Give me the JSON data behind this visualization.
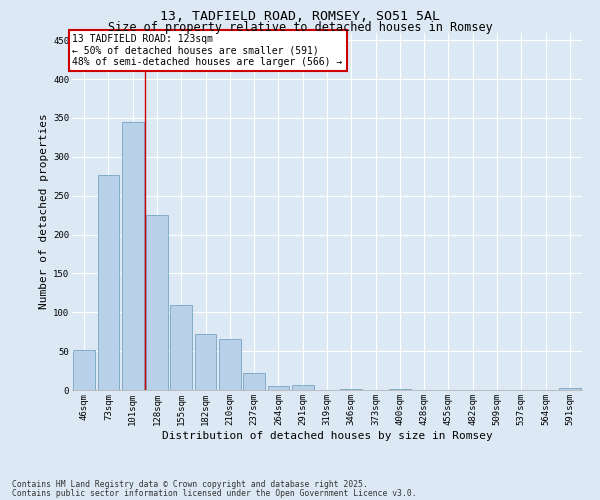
{
  "title": "13, TADFIELD ROAD, ROMSEY, SO51 5AL",
  "subtitle": "Size of property relative to detached houses in Romsey",
  "xlabel": "Distribution of detached houses by size in Romsey",
  "ylabel": "Number of detached properties",
  "categories": [
    "46sqm",
    "73sqm",
    "101sqm",
    "128sqm",
    "155sqm",
    "182sqm",
    "210sqm",
    "237sqm",
    "264sqm",
    "291sqm",
    "319sqm",
    "346sqm",
    "373sqm",
    "400sqm",
    "428sqm",
    "455sqm",
    "482sqm",
    "509sqm",
    "537sqm",
    "564sqm",
    "591sqm"
  ],
  "values": [
    51,
    277,
    345,
    225,
    110,
    72,
    65,
    22,
    5,
    6,
    0,
    1,
    0,
    1,
    0,
    0,
    0,
    0,
    0,
    0,
    2
  ],
  "bar_color": "#b8d0e8",
  "bar_edge_color": "#6699bb",
  "background_color": "#dce9f5",
  "grid_color": "#ffffff",
  "vline_x": 2.5,
  "vline_color": "#cc0000",
  "annotation_title": "13 TADFIELD ROAD: 123sqm",
  "annotation_line1": "← 50% of detached houses are smaller (591)",
  "annotation_line2": "48% of semi-detached houses are larger (566) →",
  "annotation_edge_color": "#cc0000",
  "ylim": [
    0,
    460
  ],
  "yticks": [
    0,
    50,
    100,
    150,
    200,
    250,
    300,
    350,
    400,
    450
  ],
  "footer_line1": "Contains HM Land Registry data © Crown copyright and database right 2025.",
  "footer_line2": "Contains public sector information licensed under the Open Government Licence v3.0.",
  "title_fontsize": 9.5,
  "subtitle_fontsize": 8.5,
  "ylabel_fontsize": 8,
  "xlabel_fontsize": 8,
  "tick_fontsize": 6.5,
  "annotation_fontsize": 7,
  "footer_fontsize": 5.8
}
